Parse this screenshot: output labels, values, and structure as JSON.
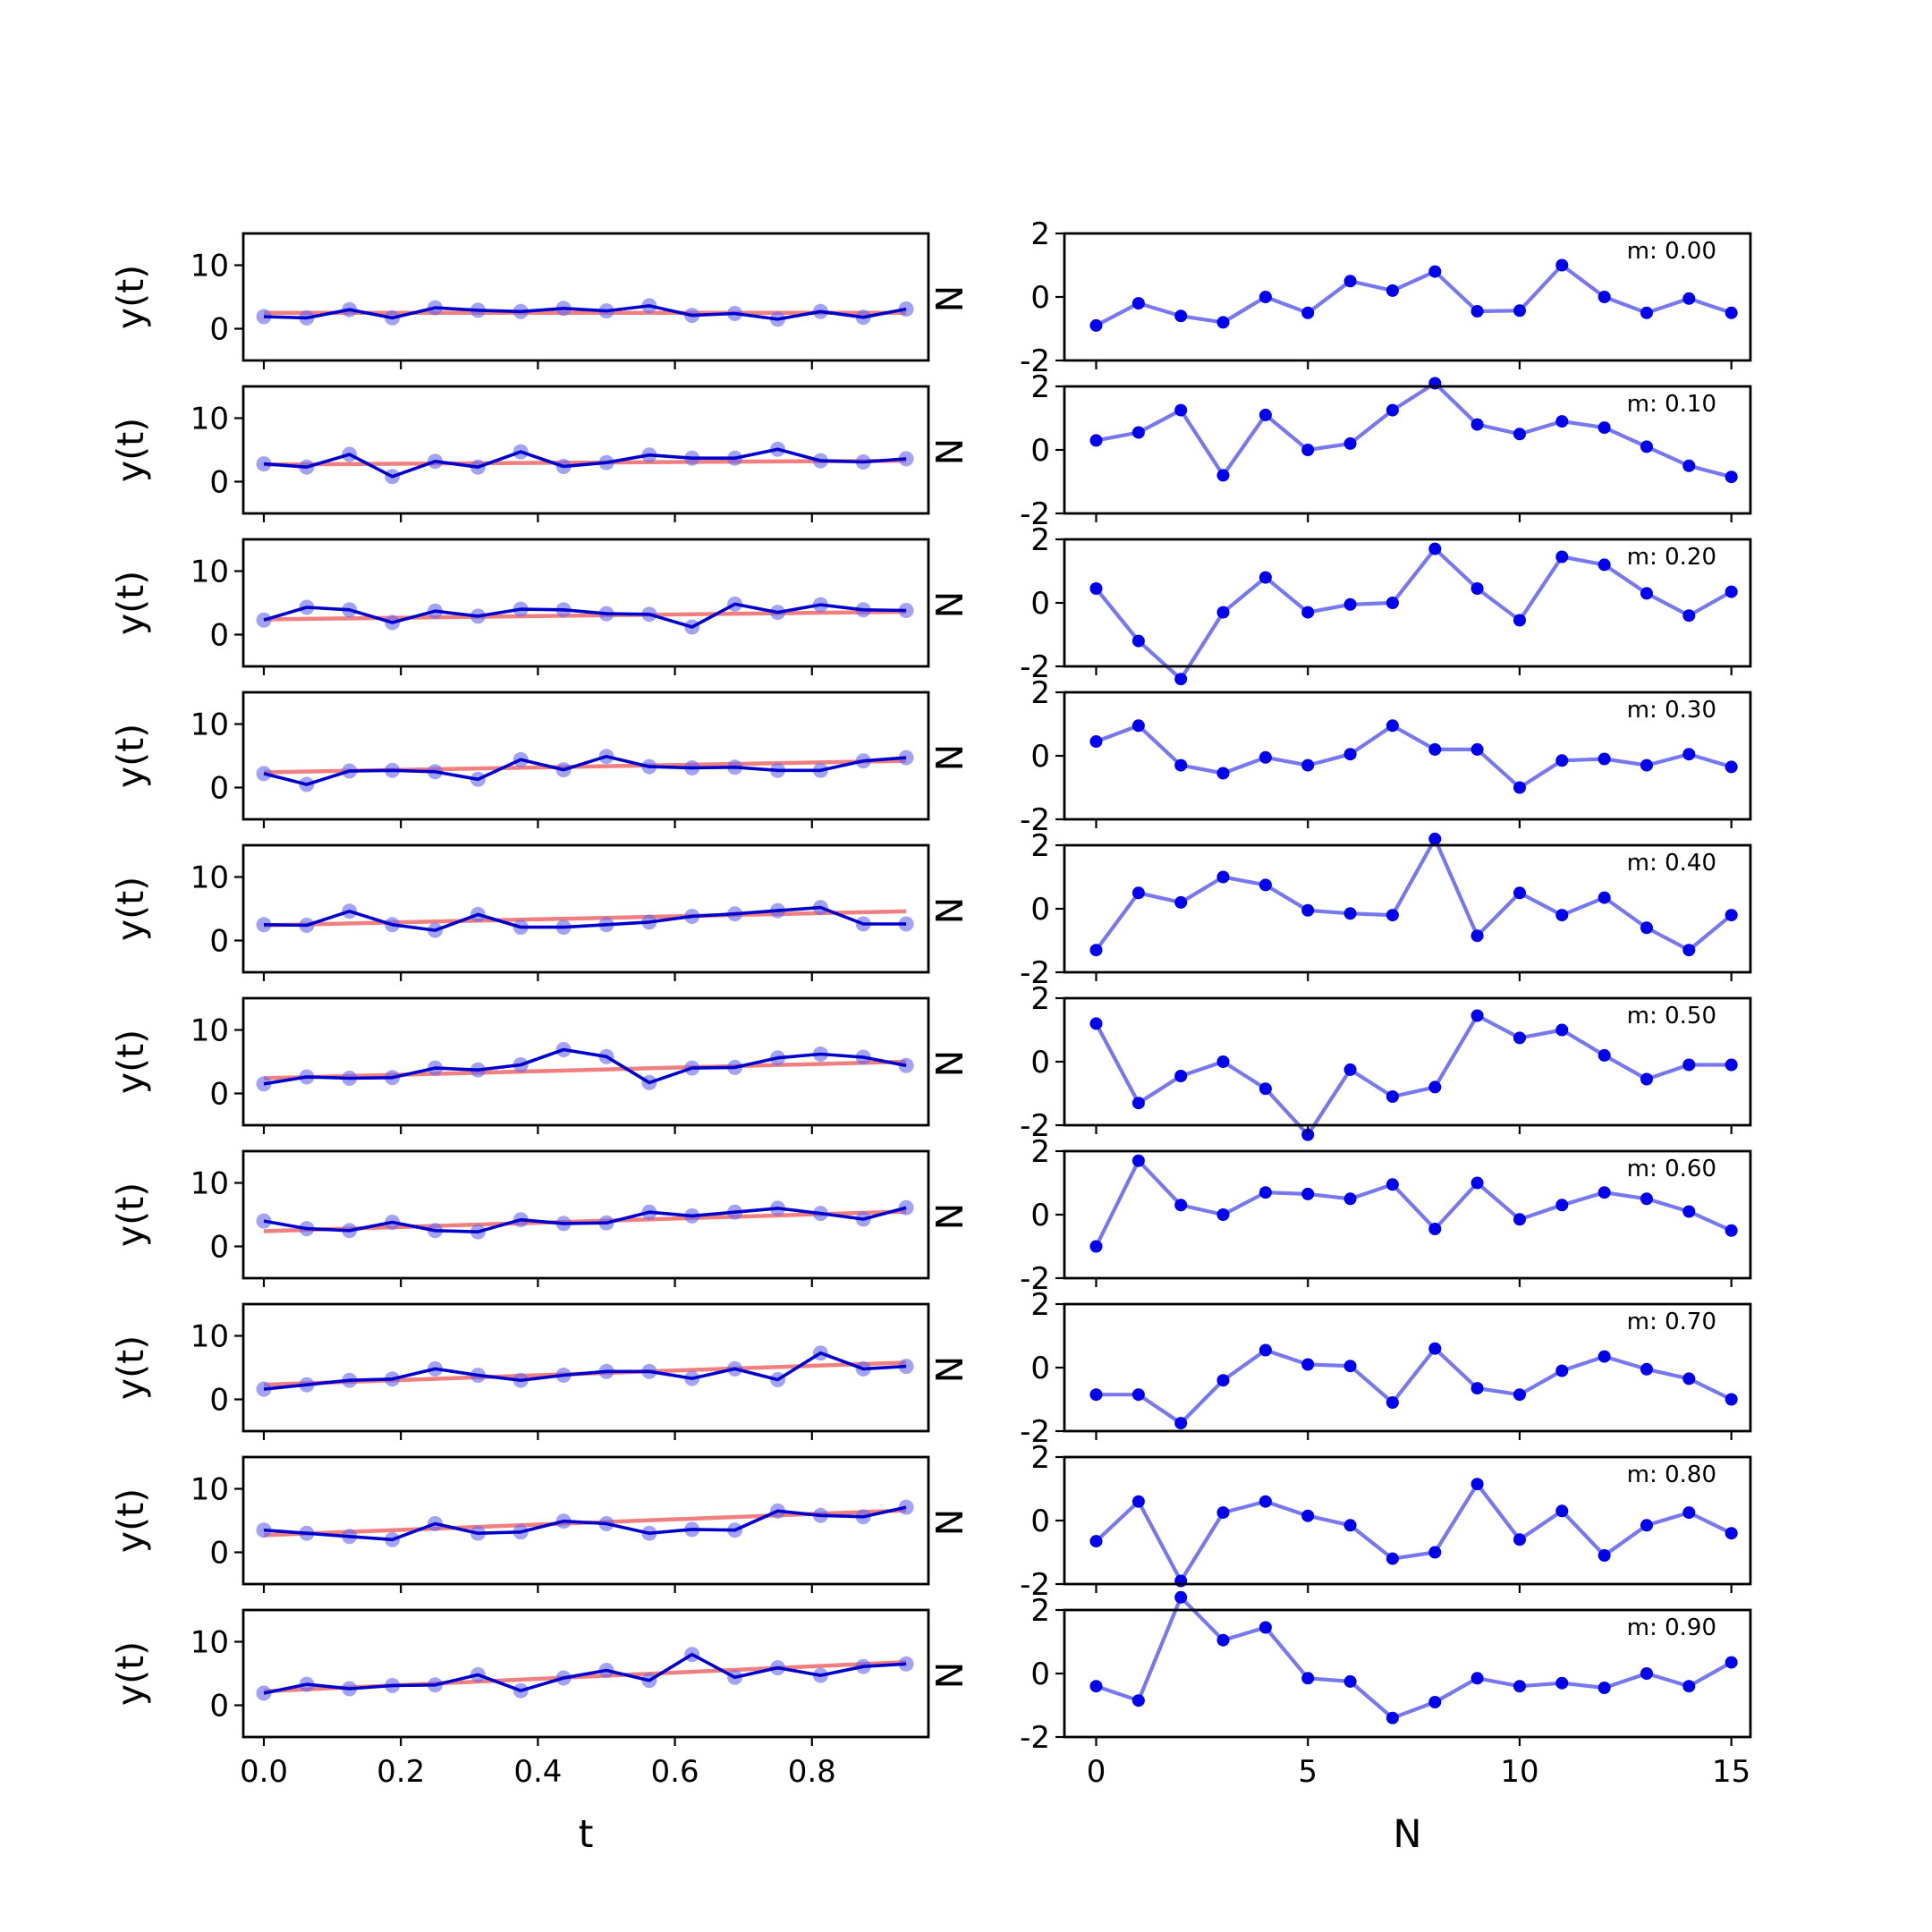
{
  "colors": {
    "trend": "#f08080",
    "raw_series": "#0000cc",
    "raw_points": "#6666ee",
    "residual": "#7777ee",
    "residual_points": "#0000ee"
  },
  "chart_data": [
    {
      "type": "line",
      "panel": "left-column",
      "xlabel": "t",
      "ylabel": "y(t)",
      "ylim": [
        -5,
        15
      ],
      "xlim": [
        -0.03,
        0.97
      ],
      "yticks": [
        "0",
        "10"
      ],
      "xticks": [
        "0.0",
        "0.2",
        "0.4",
        "0.6",
        "0.8"
      ],
      "x": [
        0,
        0.0625,
        0.125,
        0.1875,
        0.25,
        0.3125,
        0.375,
        0.4375,
        0.5,
        0.5625,
        0.625,
        0.6875,
        0.75,
        0.8125,
        0.875,
        0.9375
      ],
      "subplots": [
        {
          "trend": [
            2.5,
            2.5
          ],
          "y": [
            1.9,
            1.7,
            3.0,
            1.7,
            3.3,
            2.9,
            2.7,
            3.2,
            2.8,
            3.6,
            2.1,
            2.4,
            1.5,
            2.7,
            1.8,
            3.1
          ]
        },
        {
          "trend": [
            2.7,
            3.3
          ],
          "y": [
            2.8,
            2.3,
            4.3,
            0.8,
            3.2,
            2.3,
            4.7,
            2.4,
            3.0,
            4.2,
            3.7,
            3.7,
            5.1,
            3.3,
            3.1,
            3.6
          ]
        },
        {
          "trend": [
            2.4,
            3.6
          ],
          "y": [
            2.3,
            4.3,
            3.9,
            1.9,
            3.7,
            2.9,
            4.0,
            3.9,
            3.3,
            3.2,
            1.2,
            4.8,
            3.5,
            4.7,
            3.9,
            3.8
          ]
        },
        {
          "trend": [
            2.4,
            4.2
          ],
          "y": [
            2.2,
            0.5,
            2.6,
            2.7,
            2.5,
            1.3,
            4.4,
            2.8,
            4.9,
            3.3,
            3.1,
            3.2,
            2.7,
            2.7,
            4.2,
            4.7
          ]
        },
        {
          "trend": [
            2.4,
            4.6
          ],
          "y": [
            2.5,
            2.4,
            4.6,
            2.5,
            1.6,
            4.1,
            2.1,
            2.1,
            2.5,
            2.9,
            3.8,
            4.2,
            4.7,
            5.2,
            2.6,
            2.6
          ]
        },
        {
          "trend": [
            2.4,
            5.0
          ],
          "y": [
            1.5,
            2.6,
            2.4,
            2.5,
            4.0,
            3.7,
            4.5,
            6.9,
            5.8,
            1.7,
            4.0,
            4.1,
            5.6,
            6.2,
            5.7,
            4.4
          ]
        },
        {
          "trend": [
            2.4,
            5.5
          ],
          "y": [
            4.0,
            2.8,
            2.5,
            3.8,
            2.5,
            2.3,
            4.2,
            3.6,
            3.7,
            5.4,
            4.8,
            5.4,
            6.0,
            5.2,
            4.3,
            6.1
          ]
        },
        {
          "trend": [
            2.3,
            5.8
          ],
          "y": [
            1.6,
            2.3,
            3.0,
            3.2,
            4.8,
            3.8,
            3.0,
            3.8,
            4.4,
            4.4,
            3.3,
            4.8,
            3.1,
            7.3,
            4.8,
            5.2
          ]
        },
        {
          "trend": [
            2.7,
            6.6
          ],
          "y": [
            3.5,
            3.0,
            2.5,
            2.0,
            4.5,
            3.0,
            3.2,
            4.9,
            4.5,
            3.0,
            3.6,
            3.5,
            6.5,
            5.8,
            5.6,
            7.1
          ]
        },
        {
          "trend": [
            2.2,
            6.8
          ],
          "y": [
            1.9,
            3.3,
            2.6,
            3.1,
            3.2,
            4.8,
            2.3,
            4.3,
            5.5,
            3.9,
            8.0,
            4.4,
            5.9,
            4.7,
            6.1,
            6.5
          ]
        }
      ]
    },
    {
      "type": "line",
      "panel": "right-column",
      "xlabel": "N",
      "ylabel": "N",
      "ylim": [
        -2,
        2
      ],
      "xlim": [
        -0.75,
        15.45
      ],
      "yticks": [
        "-2",
        "0",
        "2"
      ],
      "xticks": [
        "0",
        "5",
        "10",
        "15"
      ],
      "x": [
        0,
        1,
        2,
        3,
        4,
        5,
        6,
        7,
        8,
        9,
        10,
        11,
        12,
        13,
        14,
        15
      ],
      "subplots": [
        {
          "annotation": "m: 0.00",
          "y": [
            -0.9,
            -0.2,
            -0.6,
            -0.8,
            0.0,
            -0.5,
            0.5,
            0.2,
            0.8,
            -0.45,
            -0.43,
            1.0,
            0.0,
            -0.5,
            -0.05,
            -0.5
          ]
        },
        {
          "annotation": "m: 0.10",
          "y": [
            0.3,
            0.55,
            1.25,
            -0.8,
            1.1,
            0.0,
            0.2,
            1.25,
            2.1,
            0.8,
            0.5,
            0.9,
            0.7,
            0.1,
            -0.5,
            -0.85
          ]
        },
        {
          "annotation": "m: 0.20",
          "y": [
            0.45,
            -1.2,
            -2.4,
            -0.3,
            0.8,
            -0.3,
            -0.05,
            0.0,
            1.7,
            0.45,
            -0.55,
            1.45,
            1.2,
            0.3,
            -0.4,
            0.35
          ]
        },
        {
          "annotation": "m: 0.30",
          "y": [
            0.45,
            0.95,
            -0.3,
            -0.55,
            -0.05,
            -0.3,
            0.05,
            0.95,
            0.2,
            0.2,
            -1.0,
            -0.15,
            -0.1,
            -0.3,
            0.05,
            -0.35
          ]
        },
        {
          "annotation": "m: 0.40",
          "y": [
            -1.3,
            0.5,
            0.2,
            1.0,
            0.75,
            -0.05,
            -0.15,
            -0.2,
            2.2,
            -0.85,
            0.5,
            -0.2,
            0.35,
            -0.6,
            -1.3,
            -0.2
          ]
        },
        {
          "annotation": "m: 0.50",
          "y": [
            1.2,
            -1.3,
            -0.45,
            0.0,
            -0.85,
            -2.3,
            -0.25,
            -1.1,
            -0.8,
            1.45,
            0.75,
            1.0,
            0.2,
            -0.55,
            -0.1,
            -0.1
          ]
        },
        {
          "annotation": "m: 0.60",
          "y": [
            -1.0,
            1.7,
            0.3,
            0.0,
            0.7,
            0.65,
            0.5,
            0.95,
            -0.45,
            1.0,
            -0.15,
            0.3,
            0.7,
            0.5,
            0.1,
            -0.5
          ]
        },
        {
          "annotation": "m: 0.70",
          "y": [
            -0.85,
            -0.85,
            -1.75,
            -0.4,
            0.55,
            0.1,
            0.05,
            -1.1,
            0.6,
            -0.65,
            -0.85,
            -0.1,
            0.35,
            -0.05,
            -0.35,
            -1.0
          ]
        },
        {
          "annotation": "m: 0.80",
          "y": [
            -0.65,
            0.6,
            -1.9,
            0.25,
            0.6,
            0.15,
            -0.15,
            -1.2,
            -1.0,
            1.15,
            -0.6,
            0.3,
            -1.1,
            -0.15,
            0.25,
            -0.4
          ]
        },
        {
          "annotation": "m: 0.90",
          "y": [
            -0.4,
            -0.85,
            2.4,
            1.05,
            1.45,
            -0.15,
            -0.25,
            -1.4,
            -0.9,
            -0.15,
            -0.4,
            -0.3,
            -0.45,
            0.0,
            -0.4,
            0.35
          ]
        }
      ]
    }
  ]
}
